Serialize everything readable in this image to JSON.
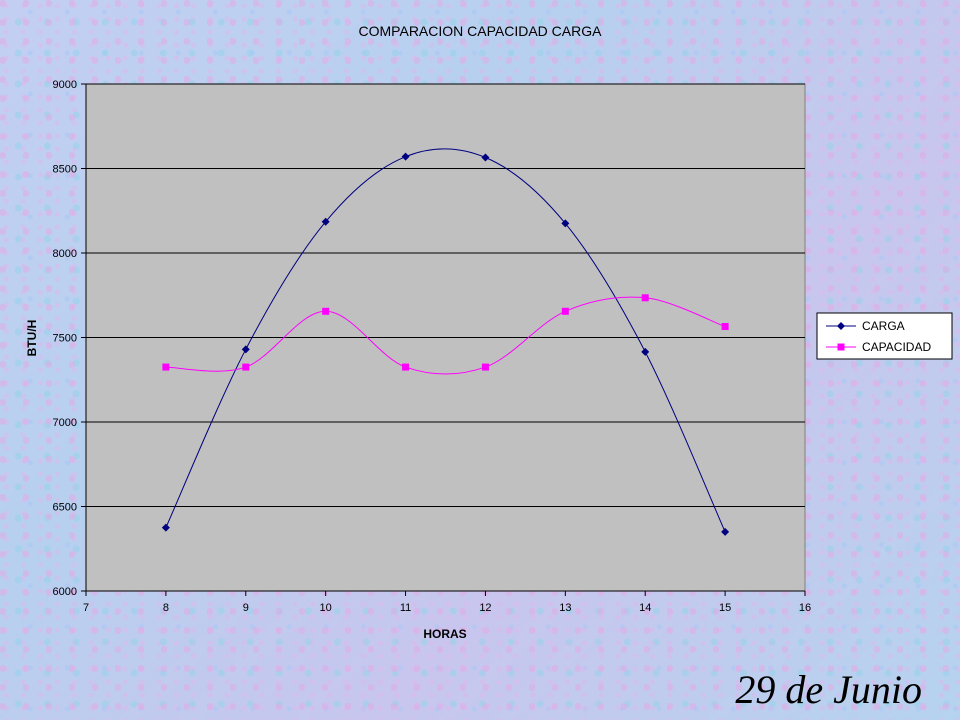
{
  "chart_data": {
    "type": "line",
    "title": "COMPARACION CAPACIDAD CARGA",
    "xlabel": "HORAS",
    "ylabel": "BTU/H",
    "x": [
      8,
      9,
      10,
      11,
      12,
      13,
      14,
      15
    ],
    "xlim": [
      7,
      16
    ],
    "ylim": [
      6000,
      9000
    ],
    "xticks": [
      7,
      8,
      9,
      10,
      11,
      12,
      13,
      14,
      15,
      16
    ],
    "yticks": [
      6000,
      6500,
      7000,
      7500,
      8000,
      8500,
      9000
    ],
    "grid": "horizontal",
    "smooth": true,
    "legend_position": "right",
    "plot_background": "#c0c0c0",
    "series": [
      {
        "name": "CARGA",
        "color": "#000080",
        "marker": "diamond",
        "values": [
          6375,
          7430,
          8185,
          8570,
          8565,
          8175,
          7415,
          6350
        ]
      },
      {
        "name": "CAPACIDAD",
        "color": "#ff00ff",
        "marker": "square",
        "values": [
          7325,
          7325,
          7655,
          7325,
          7325,
          7655,
          7735,
          7565
        ]
      }
    ]
  },
  "footer": {
    "date_text": "29 de Junio"
  }
}
